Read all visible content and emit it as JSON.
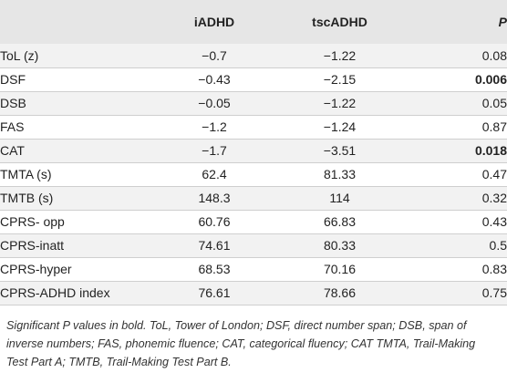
{
  "table": {
    "headers": [
      "",
      "iADHD",
      "tscADHD",
      "P"
    ],
    "rows": [
      {
        "label": "ToL (z)",
        "iadhd": "−0.7",
        "tscadhd": "−1.22",
        "p": "0.08",
        "p_bold": false
      },
      {
        "label": "DSF",
        "iadhd": "−0.43",
        "tscadhd": "−2.15",
        "p": "0.006",
        "p_bold": true
      },
      {
        "label": "DSB",
        "iadhd": "−0.05",
        "tscadhd": "−1.22",
        "p": "0.05",
        "p_bold": false
      },
      {
        "label": "FAS",
        "iadhd": "−1.2",
        "tscadhd": "−1.24",
        "p": "0.87",
        "p_bold": false
      },
      {
        "label": "CAT",
        "iadhd": "−1.7",
        "tscadhd": "−3.51",
        "p": "0.018",
        "p_bold": true
      },
      {
        "label": "TMTA (s)",
        "iadhd": "62.4",
        "tscadhd": "81.33",
        "p": "0.47",
        "p_bold": false
      },
      {
        "label": "TMTB (s)",
        "iadhd": "148.3",
        "tscadhd": "114",
        "p": "0.32",
        "p_bold": false
      },
      {
        "label": "CPRS- opp",
        "iadhd": "60.76",
        "tscadhd": "66.83",
        "p": "0.43",
        "p_bold": false
      },
      {
        "label": "CPRS-inatt",
        "iadhd": "74.61",
        "tscadhd": "80.33",
        "p": "0.5",
        "p_bold": false
      },
      {
        "label": "CPRS-hyper",
        "iadhd": "68.53",
        "tscadhd": "70.16",
        "p": "0.83",
        "p_bold": false
      },
      {
        "label": "CPRS-ADHD index",
        "iadhd": "76.61",
        "tscadhd": "78.66",
        "p": "0.75",
        "p_bold": false
      }
    ]
  },
  "footnote": "Significant P values in bold. ToL, Tower of London; DSF, direct number span; DSB, span of inverse numbers; FAS, phonemic fluence; CAT, categorical fluency; CAT TMTA, Trail-Making Test Part A; TMTB, Trail-Making Test Part B."
}
